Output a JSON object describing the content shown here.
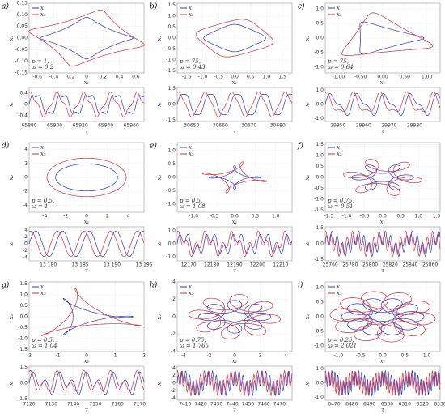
{
  "series": [
    {
      "name": "x₁",
      "color": "#2b34c6"
    },
    {
      "name": "x₂",
      "color": "#d22f3a"
    }
  ],
  "axis_labels": {
    "phase_x": "x₁",
    "phase_y": "x₂",
    "time_x": "τ",
    "time_y": "xᵢ"
  },
  "chart_data": [
    {
      "type": "line",
      "label": "a)",
      "params": [
        "p = 1,",
        "ω = 0.2"
      ],
      "phase": {
        "xlim": [
          -0.7,
          0.7
        ],
        "ylim": [
          -0.15,
          0.15
        ],
        "xticks": [
          -0.6,
          -0.4,
          -0.2,
          0,
          0.2,
          0.4,
          0.6
        ],
        "yticks": [
          -0.15,
          {
            "value": -0.1,
            "label": "-0.10"
          },
          -0.05,
          {
            "value": 0,
            "label": "0.00"
          },
          0.05,
          {
            "value": 0.1,
            "label": "0.10"
          },
          0.15
        ]
      },
      "time": {
        "xlim": [
          65880,
          65970
        ],
        "ylim": [
          -0.6,
          0.6
        ],
        "xticks": [
          65880,
          65900,
          65920,
          65940,
          65960
        ],
        "yticks": [
          -0.4,
          0,
          0.4
        ]
      }
    },
    {
      "type": "line",
      "label": "b)",
      "params": [
        "p = 75,",
        "ω = 0.43"
      ],
      "phase": {
        "xlim": [
          -1.8,
          1.8
        ],
        "ylim": [
          -1.6,
          1.6
        ],
        "xticks": [
          -1.5,
          {
            "value": -1,
            "label": "-1.0"
          },
          -0.5,
          {
            "value": 0,
            "label": "0.0"
          },
          0.5,
          {
            "value": 1,
            "label": "1.0"
          },
          1.5
        ],
        "yticks": [
          -1.5,
          {
            "value": -1,
            "label": "-1.0"
          },
          -0.5,
          {
            "value": 0,
            "label": "0.0"
          },
          0.5,
          {
            "value": 1,
            "label": "1.0"
          },
          1.5
        ]
      },
      "time": {
        "xlim": [
          30645,
          30685
        ],
        "ylim": [
          -1.6,
          1.6
        ],
        "xticks": [
          30650,
          30660,
          30670,
          30680
        ],
        "yticks": [
          -1.5,
          {
            "value": 0,
            "label": "0.0"
          },
          1.5
        ]
      }
    },
    {
      "type": "line",
      "label": "c)",
      "params": [
        "p = 75,",
        "ω = 0.64"
      ],
      "phase": {
        "xlim": [
          -1.3,
          1.3
        ],
        "ylim": [
          -1.2,
          1.2
        ],
        "xticks": [
          {
            "value": -1,
            "label": "-1.00"
          },
          {
            "value": -0.5,
            "label": "-0.50"
          },
          {
            "value": 0,
            "label": "0.00"
          },
          {
            "value": 0.5,
            "label": "0.50"
          },
          {
            "value": 1,
            "label": "1.00"
          }
        ],
        "yticks": [
          {
            "value": -1,
            "label": "-1.0"
          },
          -0.5,
          {
            "value": 0,
            "label": "0.0"
          },
          0.5,
          {
            "value": 1,
            "label": "1.0"
          }
        ]
      },
      "time": {
        "xlim": [
          29945,
          29990
        ],
        "ylim": [
          -1.2,
          1.2
        ],
        "xticks": [
          29950,
          29960,
          29970,
          29980
        ],
        "yticks": [
          {
            "value": -1,
            "label": "-1.0"
          },
          {
            "value": 0,
            "label": "0.0"
          },
          {
            "value": 1,
            "label": "1.0"
          }
        ]
      }
    },
    {
      "type": "line",
      "label": "d)",
      "params": [
        "p = 0.5,",
        "ω = 1"
      ],
      "phase": {
        "xlim": [
          -5.5,
          5.5
        ],
        "ylim": [
          -5,
          5
        ],
        "xticks": [
          -4,
          -2,
          0,
          2,
          4
        ],
        "yticks": [
          -4,
          -2,
          0,
          2,
          4
        ]
      },
      "time": {
        "xlim": [
          13177,
          13195
        ],
        "ylim": [
          -5,
          5
        ],
        "xticks": [
          {
            "value": 13180,
            "label": "13 180"
          },
          {
            "value": 13185,
            "label": "13 185"
          },
          {
            "value": 13190,
            "label": "13 190"
          },
          {
            "value": 13195,
            "label": "13 195"
          }
        ],
        "yticks": [
          -4,
          -2,
          0,
          2,
          4
        ]
      }
    },
    {
      "type": "line",
      "label": "e)",
      "params": [
        "p = 0.5,",
        "ω = 1.08"
      ],
      "phase": {
        "xlim": [
          -1.4,
          1.4
        ],
        "ylim": [
          -1.3,
          1.3
        ],
        "xticks": [
          {
            "value": -1,
            "label": "-1.0"
          },
          -0.5,
          {
            "value": 0,
            "label": "0.0"
          },
          0.5,
          {
            "value": 1,
            "label": "1.0"
          }
        ],
        "yticks": [
          {
            "value": -1,
            "label": "-1.0"
          },
          -0.5,
          {
            "value": 0,
            "label": "0.0"
          },
          0.5,
          {
            "value": 1,
            "label": "1.0"
          }
        ]
      },
      "time": {
        "xlim": [
          12165,
          12215
        ],
        "ylim": [
          -1.3,
          1.3
        ],
        "xticks": [
          12170,
          12180,
          12190,
          12200,
          12210
        ],
        "yticks": [
          {
            "value": -1,
            "label": "-1.0"
          },
          {
            "value": 0,
            "label": "0.0"
          },
          {
            "value": 1,
            "label": "1.0"
          }
        ]
      }
    },
    {
      "type": "line",
      "label": "f)",
      "params": [
        "p = 0.75,",
        "ω = 0.51"
      ],
      "phase": {
        "xlim": [
          -1.6,
          1.6
        ],
        "ylim": [
          -1.6,
          1.6
        ],
        "xticks": [
          -1.5,
          {
            "value": -1,
            "label": "-1.0"
          },
          -0.5,
          {
            "value": 0,
            "label": "0.0"
          },
          0.5,
          {
            "value": 1,
            "label": "1.0"
          },
          1.5
        ],
        "yticks": [
          -1.5,
          {
            "value": -1,
            "label": "-1.0"
          },
          -0.5,
          {
            "value": 0,
            "label": "0.0"
          },
          0.5,
          {
            "value": 1,
            "label": "1.0"
          },
          1.5
        ]
      },
      "time": {
        "xlim": [
          25755,
          25870
        ],
        "ylim": [
          -1.6,
          1.6
        ],
        "xticks": [
          25760,
          25780,
          25800,
          25820,
          25840,
          25860
        ],
        "yticks": [
          -1.5,
          {
            "value": 0,
            "label": "0.0"
          },
          1.5
        ]
      }
    },
    {
      "type": "line",
      "label": "g)",
      "params": [
        "p = 0.5,",
        "ω = 1.04"
      ],
      "phase": {
        "xlim": [
          -2,
          2
        ],
        "ylim": [
          -1.6,
          1.6
        ],
        "xticks": [
          -2,
          -1,
          0,
          1,
          2
        ],
        "yticks": [
          -1.5,
          {
            "value": -1,
            "label": "-1.0"
          },
          -0.5,
          {
            "value": 0,
            "label": "0.0"
          },
          0.5,
          {
            "value": 1,
            "label": "1.0"
          },
          1.5
        ]
      },
      "time": {
        "xlim": [
          7120,
          7172
        ],
        "ylim": [
          -1.6,
          1.6
        ],
        "xticks": [
          7120,
          7130,
          7140,
          7150,
          7160,
          7170
        ],
        "yticks": [
          -1.5,
          {
            "value": 0,
            "label": "0.0"
          },
          1.5
        ]
      }
    },
    {
      "type": "line",
      "label": "h)",
      "params": [
        "p = 0.75,",
        "ω = 1.765"
      ],
      "phase": {
        "xlim": [
          -4.5,
          4.5
        ],
        "ylim": [
          -4,
          4
        ],
        "xticks": [
          -4,
          -2,
          0,
          2,
          4
        ],
        "yticks": [
          -4,
          -2,
          0,
          2,
          4
        ]
      },
      "time": {
        "xlim": [
          7405,
          7478
        ],
        "ylim": [
          -4.5,
          4.5
        ],
        "xticks": [
          7410,
          7420,
          7430,
          7440,
          7450,
          7460,
          7470
        ],
        "yticks": [
          -4,
          -2,
          0,
          2,
          4
        ]
      }
    },
    {
      "type": "line",
      "label": "i)",
      "params": [
        "p = 0.25,",
        "ω = 2.021"
      ],
      "phase": {
        "xlim": [
          -1.3,
          1.3
        ],
        "ylim": [
          -1.2,
          1.2
        ],
        "xticks": [
          {
            "value": -1,
            "label": "-1.0"
          },
          -0.5,
          {
            "value": 0,
            "label": "0.0"
          },
          0.5,
          {
            "value": 1,
            "label": "1.0"
          }
        ],
        "yticks": [
          {
            "value": -1,
            "label": "-1.0"
          },
          -0.5,
          {
            "value": 0,
            "label": "0.0"
          },
          0.5,
          {
            "value": 1,
            "label": "1.0"
          }
        ]
      },
      "time": {
        "xlim": [
          6465,
          6530
        ],
        "ylim": [
          -1.2,
          1.2
        ],
        "xticks": [
          6470,
          6480,
          6490,
          6500,
          6510,
          6520,
          6530
        ],
        "yticks": [
          {
            "value": -1,
            "label": "-1.0"
          },
          {
            "value": 0,
            "label": "0.0"
          },
          {
            "value": 1,
            "label": "1.0"
          }
        ]
      }
    }
  ]
}
